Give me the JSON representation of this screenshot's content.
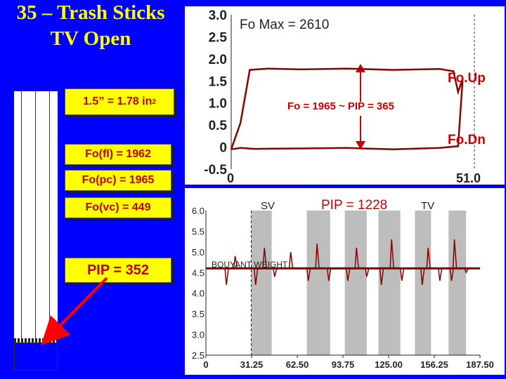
{
  "title": {
    "line1": "35 – Trash Sticks",
    "line2": "TV Open"
  },
  "left": {
    "diameter_label": "1.5” = 1.78 in",
    "diameter_sup": "2",
    "fo_fl": "Fo(fl) = 1962",
    "fo_pc": "Fo(pc) = 1965",
    "fo_vc": "Fo(vc) = 449",
    "pip": "PIP = 352"
  },
  "colors": {
    "background": "#0000ff",
    "title": "#ffff00",
    "label_box": "#ffff00",
    "label_text": "#c00000",
    "trace": "#8b0000",
    "arrow": "#ff0000",
    "stroke_band": "#bdbdbd"
  },
  "chart_data": [
    {
      "type": "line",
      "annotations": {
        "fo_max": "Fo Max = 2610",
        "fo_up": "Fo.Up",
        "fo_dn": "Fo.Dn",
        "middle": "Fo = 1965 ~ PIP = 365"
      },
      "ylim": [
        -0.5,
        3.0
      ],
      "yticks": [
        "3.0",
        "2.5",
        "2.0",
        "1.5",
        "1.0",
        "0.5",
        "0",
        "-0.5"
      ],
      "xticks": [
        "0",
        "51.0"
      ],
      "xlim": [
        0,
        51.0
      ],
      "series": [
        {
          "x": [
            0,
            2,
            4,
            8,
            15,
            25,
            35,
            45,
            48,
            49,
            50,
            49,
            45,
            35,
            25,
            15,
            5,
            2,
            0
          ],
          "y": [
            -0.05,
            0.55,
            1.75,
            1.78,
            1.76,
            1.78,
            1.75,
            1.77,
            1.72,
            1.25,
            1.55,
            0.02,
            -0.02,
            -0.05,
            -0.02,
            -0.03,
            -0.04,
            -0.02,
            -0.05
          ]
        }
      ]
    },
    {
      "type": "line",
      "annotations": {
        "sv": "SV",
        "pip": "PIP = 1228",
        "tv": "TV",
        "bouyant": "BOUYANT WEIGHT"
      },
      "ylim": [
        2.5,
        6.0
      ],
      "yticks": [
        "6.0",
        "5.5",
        "5.0",
        "4.5",
        "4.0",
        "3.5",
        "3.0",
        "2.5"
      ],
      "xticks": [
        "0",
        "31.25",
        "62.50",
        "93.75",
        "125.00",
        "156.25",
        "187.50"
      ],
      "xlim": [
        0,
        187.5
      ],
      "baseline": 4.6,
      "stroke_bands": [
        [
          31,
          45
        ],
        [
          69,
          85
        ],
        [
          95,
          110
        ],
        [
          118,
          133
        ],
        [
          143,
          154
        ],
        [
          166,
          178
        ]
      ],
      "spikes": [
        [
          14,
          4.2
        ],
        [
          20,
          4.9
        ],
        [
          34,
          4.2
        ],
        [
          40,
          5.1
        ],
        [
          47,
          4.4
        ],
        [
          58,
          5.0
        ],
        [
          70,
          4.3
        ],
        [
          76,
          5.2
        ],
        [
          84,
          4.3
        ],
        [
          97,
          4.3
        ],
        [
          103,
          5.1
        ],
        [
          110,
          4.4
        ],
        [
          120,
          4.2
        ],
        [
          127,
          5.3
        ],
        [
          134,
          4.3
        ],
        [
          140,
          4.6
        ],
        [
          148,
          4.2
        ],
        [
          152,
          5.1
        ],
        [
          160,
          4.3
        ],
        [
          168,
          4.3
        ],
        [
          170,
          5.3
        ],
        [
          178,
          4.5
        ]
      ]
    }
  ]
}
